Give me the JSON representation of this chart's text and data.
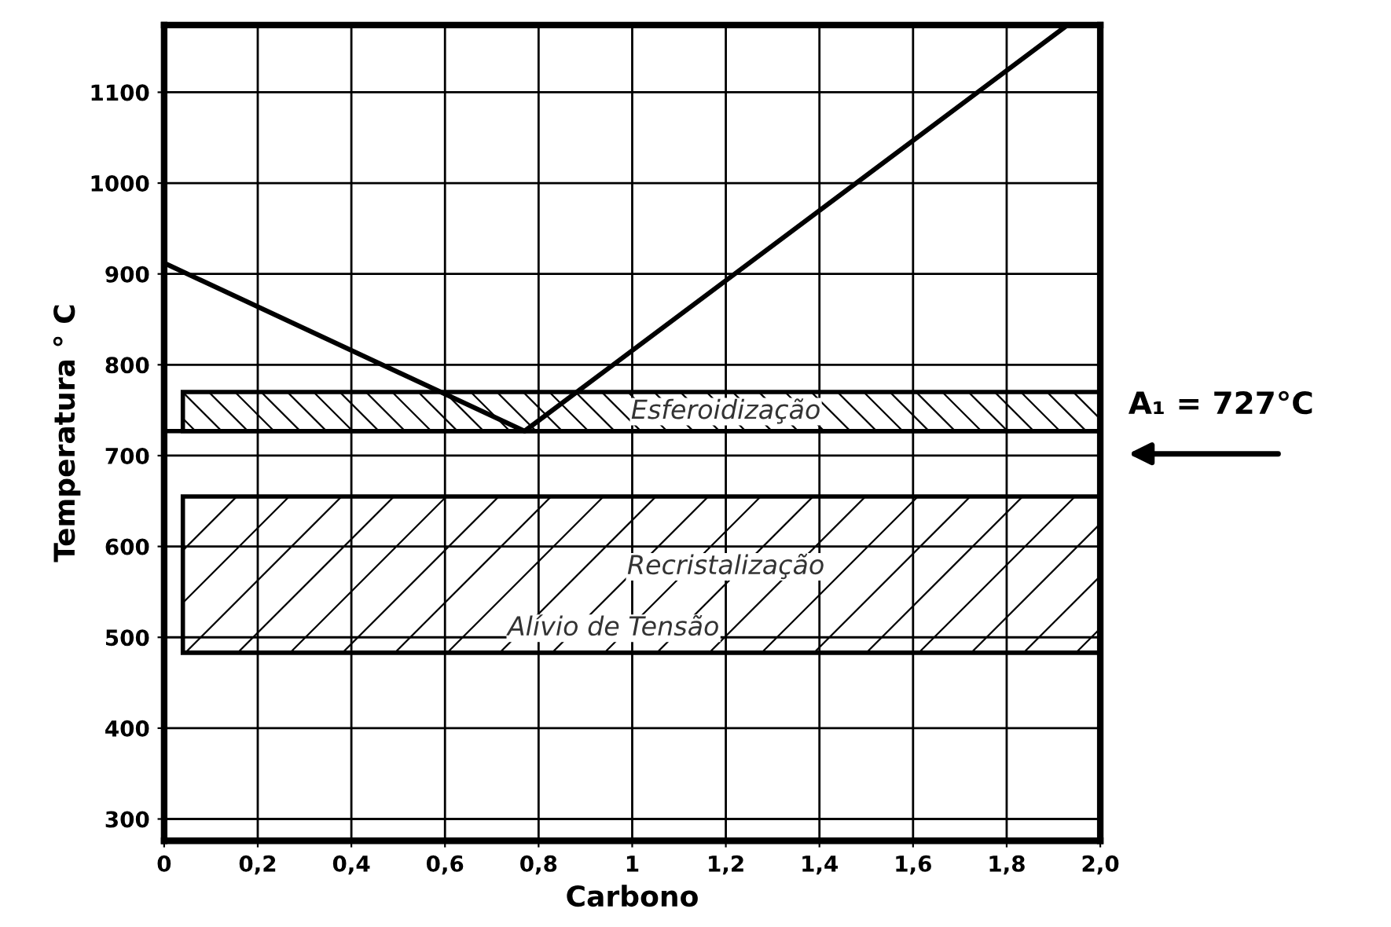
{
  "chart_data": {
    "type": "line",
    "xlabel": "Carbono",
    "ylabel": "Temperatura ° C",
    "x": [
      0,
      0.77,
      1.93
    ],
    "series": [
      {
        "color": "#000000",
        "values": [
          912,
          727,
          1174
        ]
      }
    ],
    "xlim": [
      0,
      2.0
    ],
    "xticks": [
      {
        "value": 0,
        "label": "0"
      },
      {
        "value": 0.2,
        "label": "0,2"
      },
      {
        "value": 0.4,
        "label": "0,4"
      },
      {
        "value": 0.6,
        "label": "0,6"
      },
      {
        "value": 0.8,
        "label": "0,8"
      },
      {
        "value": 1,
        "label": "1"
      },
      {
        "value": 1.2,
        "label": "1,2"
      },
      {
        "value": 1.4,
        "label": "1,4"
      },
      {
        "value": 1.6,
        "label": "1,6"
      },
      {
        "value": 1.8,
        "label": "1,8"
      },
      {
        "value": 2.0,
        "label": "2,0"
      }
    ],
    "ylim": [
      276,
      1174
    ],
    "yticks": [
      300,
      400,
      500,
      600,
      700,
      800,
      900,
      1000,
      1100
    ],
    "grid": true,
    "marker": "none",
    "line_style": "solid",
    "bands": [
      {
        "axis": "y",
        "from": 727,
        "to": 770,
        "label": "Esferoidização",
        "color": "#000000"
      },
      {
        "axis": "y",
        "from": 483,
        "to": 655,
        "label": "Recristalização",
        "color": "#000000"
      }
    ],
    "ref_lines": [
      {
        "axis": "y",
        "value": 727,
        "label": "A₁ = 727°C",
        "color": "#000000",
        "line_style": "solid"
      }
    ],
    "annotations": [
      "Alívio de Tensão"
    ]
  }
}
